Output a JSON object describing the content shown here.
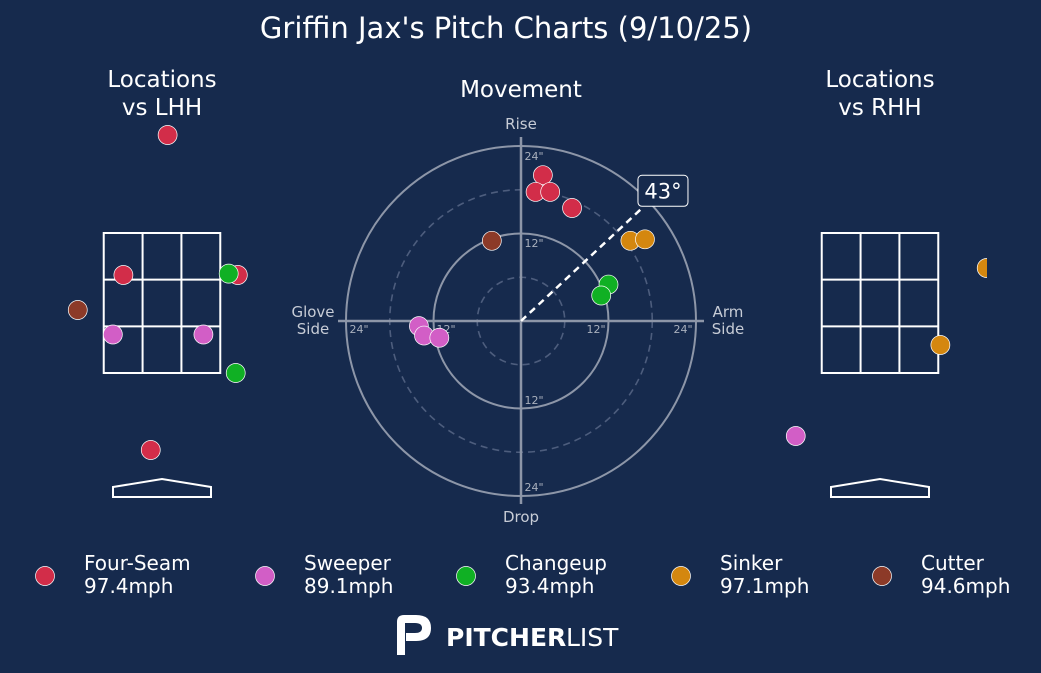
{
  "title": "Griffin Jax's Pitch Charts (9/10/25)",
  "panels": {
    "lhh_title_line1": "Locations",
    "lhh_title_line2": "vs LHH",
    "movement_title": "Movement",
    "rhh_title_line1": "Locations",
    "rhh_title_line2": "vs RHH"
  },
  "movement_axes": {
    "top": "Rise",
    "bottom": "Drop",
    "left_line1": "Glove",
    "left_line2": "Side",
    "right_line1": "Arm",
    "right_line2": "Side",
    "ring_label_12": "12\"",
    "ring_label_24": "24\""
  },
  "arm_angle_label": "43°",
  "logo": {
    "bold": "PITCHER",
    "light": "LIST"
  },
  "colors": {
    "background": "#162a4d",
    "four_seam": "#d22d49",
    "sweeper": "#d25ec6",
    "changeup": "#10b024",
    "sinker": "#d4870f",
    "cutter": "#8c3a28"
  },
  "legend": [
    {
      "name": "Four-Seam",
      "speed": "97.4mph",
      "color": "#d22d49"
    },
    {
      "name": "Sweeper",
      "speed": "89.1mph",
      "color": "#d25ec6"
    },
    {
      "name": "Changeup",
      "speed": "93.4mph",
      "color": "#10b024"
    },
    {
      "name": "Sinker",
      "speed": "97.1mph",
      "color": "#d4870f"
    },
    {
      "name": "Cutter",
      "speed": "94.6mph",
      "color": "#8c3a28"
    }
  ],
  "chart_data": [
    {
      "type": "scatter",
      "title": "Locations vs LHH",
      "xlabel": "",
      "ylabel": "",
      "x_units": "feet from plate center (catcher view)",
      "y_units": "feet above ground",
      "xlim": [
        -2.1,
        2.1
      ],
      "ylim": [
        -0.55,
        5.3
      ],
      "strike_zone": {
        "x": [
          -0.83,
          0.83
        ],
        "y": [
          1.5,
          3.5
        ]
      },
      "points": [
        {
          "pitch": "Four-Seam",
          "x": 0.08,
          "y": 4.9
        },
        {
          "pitch": "Four-Seam",
          "x": -0.55,
          "y": 2.9
        },
        {
          "pitch": "Four-Seam",
          "x": 1.08,
          "y": 2.9
        },
        {
          "pitch": "Four-Seam",
          "x": -0.16,
          "y": 0.4
        },
        {
          "pitch": "Changeup",
          "x": 0.95,
          "y": 2.92
        },
        {
          "pitch": "Changeup",
          "x": 1.05,
          "y": 1.5
        },
        {
          "pitch": "Cutter",
          "x": -1.2,
          "y": 2.4
        },
        {
          "pitch": "Sweeper",
          "x": -0.7,
          "y": 2.05
        },
        {
          "pitch": "Sweeper",
          "x": 0.59,
          "y": 2.05
        }
      ]
    },
    {
      "type": "scatter",
      "title": "Movement",
      "x_units": "horizontal break (inches, + = arm side)",
      "y_units": "induced vertical break (inches, + = rise)",
      "xlim": [
        -24,
        24
      ],
      "ylim": [
        -24,
        24
      ],
      "rings": [
        6,
        12,
        18,
        24
      ],
      "arm_angle_deg": 43,
      "points": [
        {
          "pitch": "Four-Seam",
          "x": 3.0,
          "y": 20.0
        },
        {
          "pitch": "Four-Seam",
          "x": 2.0,
          "y": 17.7
        },
        {
          "pitch": "Four-Seam",
          "x": 4.0,
          "y": 17.7
        },
        {
          "pitch": "Four-Seam",
          "x": 7.0,
          "y": 15.5
        },
        {
          "pitch": "Sinker",
          "x": 15.0,
          "y": 11.0
        },
        {
          "pitch": "Sinker",
          "x": 17.0,
          "y": 11.2
        },
        {
          "pitch": "Changeup",
          "x": 12.0,
          "y": 5.0
        },
        {
          "pitch": "Changeup",
          "x": 11.0,
          "y": 3.5
        },
        {
          "pitch": "Cutter",
          "x": -4.0,
          "y": 11.0
        },
        {
          "pitch": "Sweeper",
          "x": -14.0,
          "y": -0.7
        },
        {
          "pitch": "Sweeper",
          "x": -13.3,
          "y": -2.0
        },
        {
          "pitch": "Sweeper",
          "x": -11.2,
          "y": -2.3
        }
      ]
    },
    {
      "type": "scatter",
      "title": "Locations vs RHH",
      "x_units": "feet from plate center (catcher view)",
      "y_units": "feet above ground",
      "xlim": [
        -2.1,
        2.1
      ],
      "ylim": [
        -0.55,
        5.3
      ],
      "strike_zone": {
        "x": [
          -0.83,
          0.83
        ],
        "y": [
          1.5,
          3.5
        ]
      },
      "points": [
        {
          "pitch": "Sinker",
          "x": 1.52,
          "y": 3.0
        },
        {
          "pitch": "Sinker",
          "x": 0.86,
          "y": 1.9
        },
        {
          "pitch": "Sweeper",
          "x": -1.2,
          "y": 0.6
        }
      ]
    }
  ]
}
